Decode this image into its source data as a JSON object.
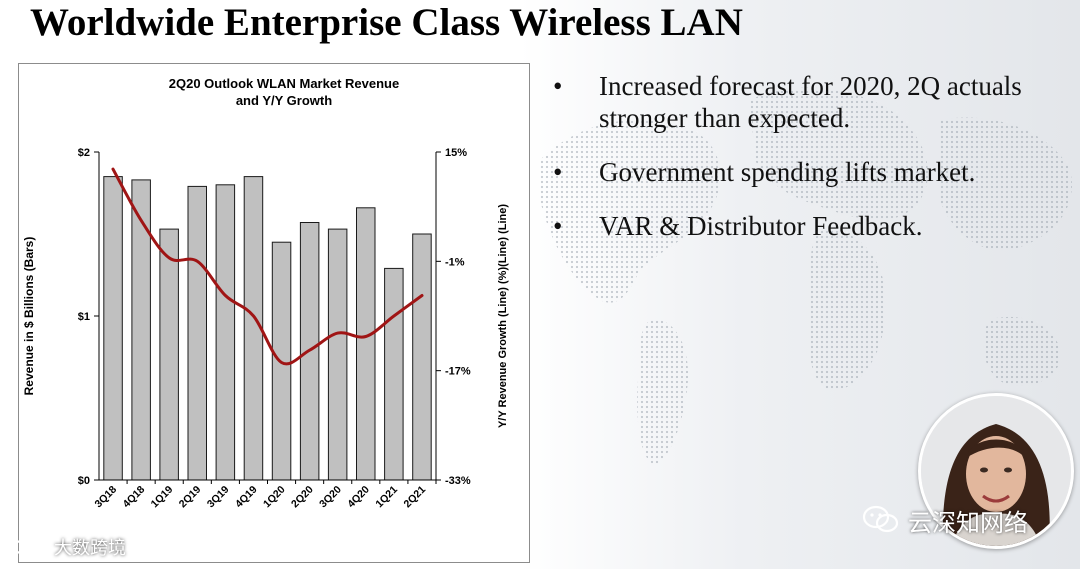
{
  "slide": {
    "title": "Worldwide Enterprise Class Wireless LAN",
    "bullets": [
      "Increased forecast for 2020, 2Q actuals stronger than expected.",
      "Government spending lifts market.",
      "VAR & Distributor Feedback."
    ],
    "bullet_glyph": "•"
  },
  "watermarks": {
    "right_text": "云深知网络",
    "left_text": "大数跨境"
  },
  "colors": {
    "bar_fill": "#c0c0c0",
    "bar_stroke": "#1a1a1a",
    "line": "#a01515",
    "axis": "#000000"
  },
  "chart_data": {
    "type": "bar+line",
    "title_lines": [
      "2Q20 Outlook WLAN Market Revenue",
      "and Y/Y Growth"
    ],
    "categories": [
      "3Q18",
      "4Q18",
      "1Q19",
      "2Q19",
      "3Q19",
      "4Q19",
      "1Q20",
      "2Q20",
      "3Q20",
      "4Q20",
      "1Q21",
      "2Q21"
    ],
    "series": [
      {
        "name": "Revenue in $ Billions (Bars)",
        "type": "bar",
        "axis": "left",
        "values": [
          1.85,
          1.83,
          1.53,
          1.79,
          1.8,
          1.85,
          1.45,
          1.57,
          1.53,
          1.66,
          1.29,
          1.5
        ]
      },
      {
        "name": "Y/Y Revenue Growth (%)",
        "type": "line",
        "axis": "right",
        "values": [
          12.5,
          5.0,
          -0.5,
          -1.0,
          -6.0,
          -9.0,
          -15.8,
          -14.0,
          -11.5,
          -12.0,
          -9.0,
          -6.0
        ]
      }
    ],
    "ylabel_left": "Revenue in $ Billions (Bars)",
    "ylabel_right": "Y/Y Revenue Growth (Line) (%)(Line) (Line)",
    "ylim_left": [
      0,
      2
    ],
    "yticks_left": [
      0,
      1,
      2
    ],
    "ytick_labels_left": [
      "$0",
      "$1",
      "$2"
    ],
    "ylim_right": [
      -33,
      15
    ],
    "yticks_right": [
      15,
      -1,
      -17,
      -33
    ],
    "ytick_labels_right": [
      "15%",
      "-1%",
      "-17%",
      "-33%"
    ],
    "grid": false
  }
}
